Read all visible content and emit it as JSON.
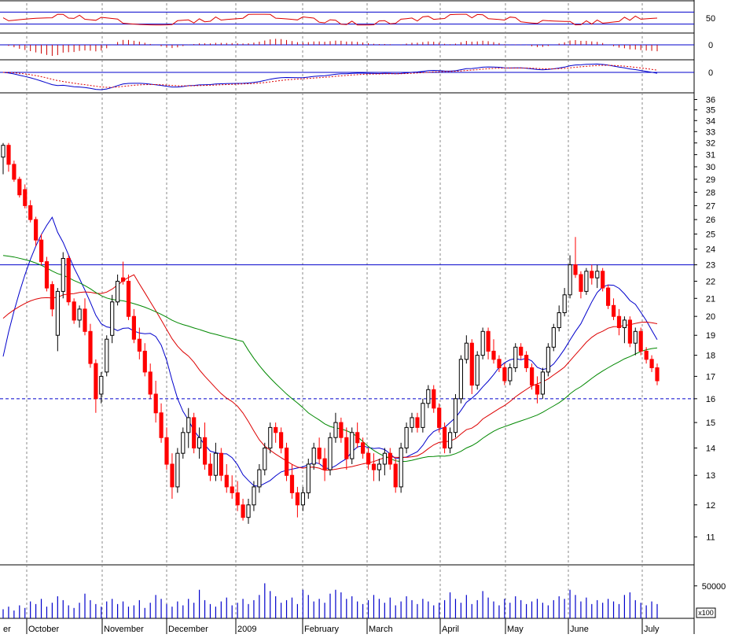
{
  "chart_data": {
    "type": "candlestick",
    "months": [
      "er",
      "October",
      "November",
      "December",
      "2009",
      "February",
      "March",
      "April",
      "May",
      "June",
      "July"
    ],
    "price_axis": {
      "ticks": [
        11,
        12,
        13,
        14,
        15,
        16,
        17,
        18,
        19,
        20,
        21,
        22,
        23,
        24,
        25,
        26,
        27,
        28,
        29,
        30,
        31,
        32,
        33,
        34,
        35,
        36
      ],
      "scale": "log",
      "range": [
        10.2,
        36.5
      ]
    },
    "reference_lines": {
      "resistance": 23,
      "support": 16
    },
    "candles": [
      [
        0,
        30.8,
        32.0,
        29.4,
        31.8
      ],
      [
        1,
        31.8,
        32.0,
        29.6,
        30.2
      ],
      [
        2,
        30.2,
        30.5,
        28.8,
        29.0
      ],
      [
        3,
        29.0,
        29.2,
        27.6,
        27.8
      ],
      [
        4,
        28.2,
        28.6,
        26.8,
        27.0
      ],
      [
        5,
        27.0,
        27.4,
        25.8,
        26.0
      ],
      [
        6,
        26.0,
        26.2,
        24.2,
        24.6
      ],
      [
        7,
        24.6,
        25.0,
        23.0,
        23.2
      ],
      [
        8,
        23.2,
        23.5,
        21.4,
        21.6
      ],
      [
        9,
        21.8,
        22.0,
        20.0,
        20.4
      ],
      [
        10,
        19.0,
        21.6,
        18.2,
        21.4
      ],
      [
        11,
        21.4,
        23.8,
        21.0,
        23.4
      ],
      [
        12,
        23.4,
        23.6,
        20.6,
        20.8
      ],
      [
        13,
        20.8,
        21.0,
        19.6,
        19.8
      ],
      [
        14,
        19.8,
        20.6,
        19.4,
        20.4
      ],
      [
        15,
        20.4,
        21.0,
        19.0,
        19.2
      ],
      [
        16,
        19.2,
        19.6,
        17.4,
        17.6
      ],
      [
        17,
        17.6,
        17.8,
        15.4,
        16.0
      ],
      [
        18,
        16.2,
        17.2,
        15.8,
        17.0
      ],
      [
        19,
        17.2,
        19.0,
        17.0,
        18.8
      ],
      [
        20,
        19.0,
        21.2,
        18.6,
        20.8
      ],
      [
        21,
        20.8,
        22.4,
        20.6,
        22.0
      ],
      [
        22,
        22.2,
        23.2,
        21.8,
        22.0
      ],
      [
        23,
        22.0,
        22.4,
        19.8,
        20.0
      ],
      [
        24,
        20.0,
        20.4,
        18.6,
        18.8
      ],
      [
        25,
        18.8,
        19.4,
        17.8,
        18.2
      ],
      [
        26,
        18.2,
        18.6,
        17.0,
        17.2
      ],
      [
        27,
        17.2,
        17.6,
        16.0,
        16.2
      ],
      [
        28,
        16.2,
        16.8,
        15.0,
        15.4
      ],
      [
        29,
        15.4,
        15.8,
        14.2,
        14.4
      ],
      [
        30,
        14.4,
        14.8,
        13.2,
        13.4
      ],
      [
        31,
        13.4,
        13.8,
        12.2,
        12.6
      ],
      [
        32,
        12.6,
        14.0,
        12.4,
        13.8
      ],
      [
        33,
        13.8,
        14.8,
        13.6,
        14.6
      ],
      [
        34,
        14.6,
        15.6,
        14.0,
        15.2
      ],
      [
        35,
        15.2,
        15.4,
        13.8,
        14.0
      ],
      [
        36,
        14.0,
        14.8,
        13.6,
        14.4
      ],
      [
        37,
        14.4,
        15.0,
        13.2,
        13.4
      ],
      [
        38,
        13.4,
        13.8,
        12.8,
        13.0
      ],
      [
        39,
        13.0,
        14.2,
        12.8,
        13.8
      ],
      [
        40,
        13.8,
        14.0,
        12.8,
        13.0
      ],
      [
        41,
        13.0,
        13.4,
        12.4,
        12.6
      ],
      [
        42,
        12.6,
        13.0,
        12.2,
        12.4
      ],
      [
        43,
        12.4,
        12.8,
        11.8,
        12.0
      ],
      [
        44,
        12.0,
        12.2,
        11.5,
        11.6
      ],
      [
        45,
        11.6,
        12.2,
        11.4,
        12.0
      ],
      [
        46,
        12.0,
        12.8,
        11.8,
        12.6
      ],
      [
        47,
        12.6,
        13.4,
        12.4,
        13.2
      ],
      [
        48,
        13.2,
        14.2,
        13.0,
        14.0
      ],
      [
        49,
        14.0,
        15.0,
        13.8,
        14.8
      ],
      [
        50,
        14.8,
        15.0,
        14.2,
        14.6
      ],
      [
        51,
        14.6,
        14.8,
        13.8,
        14.0
      ],
      [
        52,
        14.0,
        14.2,
        12.8,
        13.0
      ],
      [
        53,
        13.0,
        13.4,
        12.2,
        12.4
      ],
      [
        54,
        12.4,
        12.6,
        11.6,
        12.0
      ],
      [
        55,
        12.0,
        12.6,
        11.8,
        12.4
      ],
      [
        56,
        12.4,
        13.6,
        12.2,
        13.4
      ],
      [
        57,
        13.4,
        14.2,
        13.2,
        14.0
      ],
      [
        58,
        14.0,
        14.4,
        13.4,
        13.6
      ],
      [
        59,
        13.6,
        14.0,
        12.8,
        13.2
      ],
      [
        60,
        13.2,
        14.6,
        13.0,
        14.4
      ],
      [
        61,
        14.4,
        15.4,
        14.2,
        15.0
      ],
      [
        62,
        15.0,
        15.2,
        14.2,
        14.4
      ],
      [
        63,
        14.4,
        14.8,
        13.2,
        13.6
      ],
      [
        64,
        13.6,
        14.8,
        13.4,
        14.6
      ],
      [
        65,
        14.6,
        15.0,
        14.0,
        14.2
      ],
      [
        66,
        14.2,
        14.4,
        13.6,
        13.8
      ],
      [
        67,
        13.8,
        14.0,
        13.2,
        13.4
      ],
      [
        68,
        13.4,
        13.8,
        12.8,
        13.2
      ],
      [
        69,
        13.2,
        13.6,
        12.8,
        13.4
      ],
      [
        70,
        13.4,
        14.0,
        13.0,
        13.8
      ],
      [
        71,
        13.8,
        14.0,
        13.2,
        13.4
      ],
      [
        72,
        13.4,
        13.6,
        12.4,
        12.6
      ],
      [
        73,
        12.6,
        14.2,
        12.4,
        14.0
      ],
      [
        74,
        14.0,
        15.0,
        13.8,
        14.8
      ],
      [
        75,
        14.8,
        15.4,
        14.6,
        15.2
      ],
      [
        76,
        15.2,
        15.4,
        14.6,
        14.8
      ],
      [
        77,
        14.8,
        16.0,
        14.6,
        15.8
      ],
      [
        78,
        15.8,
        16.6,
        15.6,
        16.4
      ],
      [
        79,
        16.4,
        16.6,
        15.4,
        15.6
      ],
      [
        80,
        15.6,
        15.8,
        14.6,
        14.8
      ],
      [
        81,
        14.8,
        15.0,
        13.8,
        14.0
      ],
      [
        82,
        14.0,
        14.8,
        13.8,
        14.6
      ],
      [
        83,
        14.6,
        16.2,
        14.4,
        16.0
      ],
      [
        84,
        16.0,
        18.0,
        15.8,
        17.8
      ],
      [
        85,
        17.8,
        19.0,
        17.6,
        18.6
      ],
      [
        86,
        18.6,
        18.8,
        16.2,
        16.6
      ],
      [
        87,
        16.6,
        18.2,
        16.4,
        18.0
      ],
      [
        88,
        18.0,
        19.4,
        17.8,
        19.2
      ],
      [
        89,
        19.2,
        19.4,
        17.8,
        18.2
      ],
      [
        90,
        18.2,
        18.8,
        17.6,
        17.8
      ],
      [
        91,
        17.8,
        18.0,
        17.2,
        17.4
      ],
      [
        92,
        17.4,
        17.6,
        16.6,
        16.8
      ],
      [
        93,
        16.8,
        17.6,
        16.6,
        17.4
      ],
      [
        94,
        17.4,
        18.6,
        17.2,
        18.4
      ],
      [
        95,
        18.4,
        18.6,
        17.8,
        18.0
      ],
      [
        96,
        18.0,
        18.2,
        17.2,
        17.4
      ],
      [
        97,
        17.4,
        17.6,
        16.4,
        16.6
      ],
      [
        98,
        16.6,
        17.0,
        15.8,
        16.2
      ],
      [
        99,
        16.2,
        17.4,
        16.0,
        17.2
      ],
      [
        100,
        17.2,
        18.6,
        17.0,
        18.4
      ],
      [
        101,
        18.4,
        19.6,
        18.2,
        19.4
      ],
      [
        102,
        19.4,
        20.6,
        19.2,
        20.2
      ],
      [
        103,
        20.2,
        21.6,
        20.0,
        21.2
      ],
      [
        104,
        21.2,
        23.6,
        21.0,
        23.0
      ],
      [
        105,
        23.0,
        24.8,
        22.2,
        22.4
      ],
      [
        106,
        22.4,
        22.6,
        21.0,
        21.4
      ],
      [
        107,
        21.4,
        22.8,
        21.2,
        22.6
      ],
      [
        108,
        22.6,
        23.0,
        21.8,
        22.2
      ],
      [
        109,
        22.2,
        23.0,
        21.6,
        22.6
      ],
      [
        110,
        22.6,
        22.8,
        21.4,
        21.6
      ],
      [
        111,
        21.6,
        21.8,
        20.4,
        20.6
      ],
      [
        112,
        20.6,
        21.0,
        19.8,
        20.0
      ],
      [
        113,
        20.0,
        20.4,
        19.0,
        19.4
      ],
      [
        114,
        19.4,
        20.0,
        18.6,
        19.8
      ],
      [
        115,
        19.8,
        20.0,
        18.4,
        18.6
      ],
      [
        116,
        18.6,
        19.4,
        18.0,
        19.2
      ],
      [
        117,
        19.2,
        19.4,
        18.0,
        18.2
      ],
      [
        118,
        18.2,
        18.4,
        17.6,
        17.8
      ],
      [
        119,
        17.8,
        18.0,
        17.2,
        17.4
      ],
      [
        120,
        17.4,
        17.6,
        16.6,
        16.8
      ]
    ],
    "volume_axis": {
      "ticks": [
        50000
      ],
      "multiplier_label": "x100",
      "max": 80000
    },
    "volume": [
      [
        0,
        14
      ],
      [
        1,
        18
      ],
      [
        2,
        12
      ],
      [
        3,
        20
      ],
      [
        4,
        16
      ],
      [
        5,
        26
      ],
      [
        6,
        22
      ],
      [
        7,
        30
      ],
      [
        8,
        18
      ],
      [
        9,
        24
      ],
      [
        10,
        34
      ],
      [
        11,
        28
      ],
      [
        12,
        20
      ],
      [
        13,
        16
      ],
      [
        14,
        24
      ],
      [
        15,
        38
      ],
      [
        16,
        28
      ],
      [
        17,
        22
      ],
      [
        18,
        18
      ],
      [
        19,
        26
      ],
      [
        20,
        30
      ],
      [
        21,
        22
      ],
      [
        22,
        26
      ],
      [
        23,
        18
      ],
      [
        24,
        20
      ],
      [
        25,
        28
      ],
      [
        26,
        16
      ],
      [
        27,
        24
      ],
      [
        28,
        36
      ],
      [
        29,
        30
      ],
      [
        30,
        22
      ],
      [
        31,
        18
      ],
      [
        32,
        26
      ],
      [
        33,
        20
      ],
      [
        34,
        30
      ],
      [
        35,
        24
      ],
      [
        36,
        44
      ],
      [
        37,
        28
      ],
      [
        38,
        22
      ],
      [
        39,
        18
      ],
      [
        40,
        26
      ],
      [
        41,
        32
      ],
      [
        42,
        20
      ],
      [
        43,
        24
      ],
      [
        44,
        30
      ],
      [
        45,
        22
      ],
      [
        46,
        28
      ],
      [
        47,
        36
      ],
      [
        48,
        54
      ],
      [
        49,
        42
      ],
      [
        50,
        34
      ],
      [
        51,
        24
      ],
      [
        52,
        28
      ],
      [
        53,
        32
      ],
      [
        54,
        22
      ],
      [
        55,
        44
      ],
      [
        56,
        36
      ],
      [
        57,
        26
      ],
      [
        58,
        30
      ],
      [
        59,
        24
      ],
      [
        60,
        38
      ],
      [
        61,
        44
      ],
      [
        62,
        40
      ],
      [
        63,
        30
      ],
      [
        64,
        34
      ],
      [
        65,
        26
      ],
      [
        66,
        22
      ],
      [
        67,
        28
      ],
      [
        68,
        36
      ],
      [
        69,
        30
      ],
      [
        70,
        24
      ],
      [
        71,
        32
      ],
      [
        72,
        20
      ],
      [
        73,
        26
      ],
      [
        74,
        34
      ],
      [
        75,
        28
      ],
      [
        76,
        22
      ],
      [
        77,
        30
      ],
      [
        78,
        26
      ],
      [
        79,
        20
      ],
      [
        80,
        24
      ],
      [
        81,
        28
      ],
      [
        82,
        40
      ],
      [
        83,
        30
      ],
      [
        84,
        24
      ],
      [
        85,
        36
      ],
      [
        86,
        22
      ],
      [
        87,
        28
      ],
      [
        88,
        42
      ],
      [
        89,
        32
      ],
      [
        90,
        26
      ],
      [
        91,
        20
      ],
      [
        92,
        30
      ],
      [
        93,
        24
      ],
      [
        94,
        34
      ],
      [
        95,
        28
      ],
      [
        96,
        22
      ],
      [
        97,
        26
      ],
      [
        98,
        30
      ],
      [
        99,
        24
      ],
      [
        100,
        20
      ],
      [
        101,
        28
      ],
      [
        102,
        34
      ],
      [
        103,
        30
      ],
      [
        104,
        44
      ],
      [
        105,
        36
      ],
      [
        106,
        26
      ],
      [
        107,
        32
      ],
      [
        108,
        22
      ],
      [
        109,
        28
      ],
      [
        110,
        24
      ],
      [
        111,
        30
      ],
      [
        112,
        26
      ],
      [
        113,
        22
      ],
      [
        114,
        36
      ],
      [
        115,
        40
      ],
      [
        116,
        28
      ],
      [
        117,
        24
      ],
      [
        118,
        20
      ],
      [
        119,
        26
      ],
      [
        120,
        22
      ]
    ],
    "rsi_panel": {
      "ticks": [
        50
      ],
      "upper": 70,
      "lower": 30,
      "max": 100
    },
    "macd_hist_panel": {
      "ticks": [
        0
      ]
    },
    "macd_panel": {
      "ticks": [
        0
      ]
    },
    "colors": {
      "up_candle": "#ffffff",
      "down_candle": "#ff0000",
      "black_candle": "#000000",
      "ma_short": "#0000cc",
      "ma_mid": "#dd0000",
      "ma_long": "#008800",
      "reference_line": "#0000cc",
      "grid": "#888888",
      "volume": "#0000cc"
    }
  }
}
